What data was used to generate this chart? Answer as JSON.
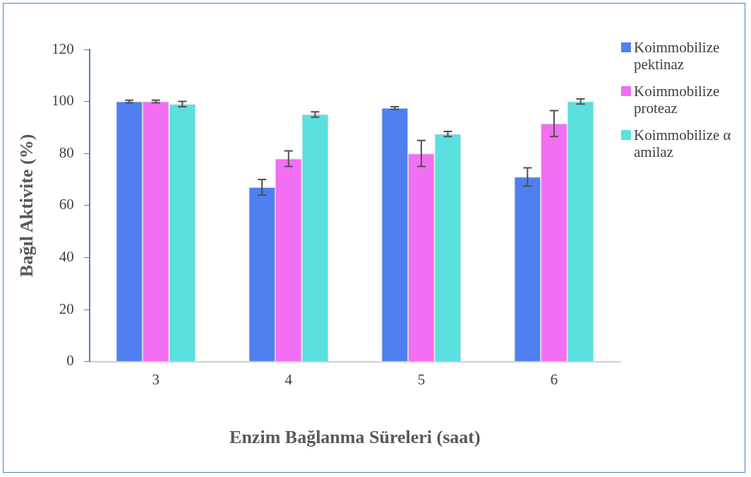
{
  "chart_data": {
    "type": "bar",
    "xlabel": "Enzim Bağlanma Süreleri (saat)",
    "ylabel": "Bağıl Aktivite (%)",
    "categories": [
      "3",
      "4",
      "5",
      "6"
    ],
    "series": [
      {
        "name": "Koimmobilize pektinaz",
        "color": "#4f7ff0",
        "values": [
          100,
          67,
          97.5,
          71
        ],
        "errors": [
          0.5,
          3,
          0.5,
          3.5
        ]
      },
      {
        "name": "Koimmobilize proteaz",
        "color": "#f26ef2",
        "values": [
          100,
          78,
          80,
          91.5
        ],
        "errors": [
          0.5,
          3,
          5,
          5
        ]
      },
      {
        "name": "Koimmobilize α amilaz",
        "color": "#5ae0de",
        "values": [
          99,
          95,
          87.5,
          100
        ],
        "errors": [
          1,
          1,
          1,
          1
        ]
      }
    ],
    "ylim": [
      0,
      120
    ],
    "yticks": [
      0,
      20,
      40,
      60,
      80,
      100,
      120
    ],
    "grid": false,
    "legend": "top right"
  }
}
